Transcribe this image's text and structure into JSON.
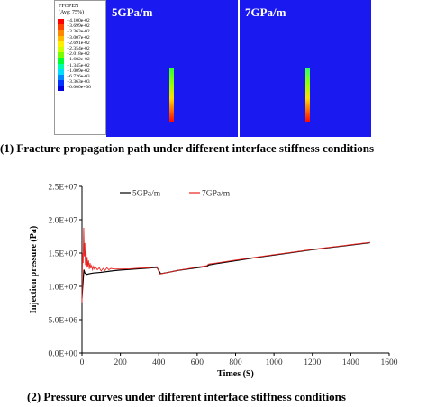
{
  "contour_legend": {
    "title_line1": "FFOPEN",
    "title_line2": "(Avg: 75%)",
    "entries": [
      {
        "label": "+4.100e-02",
        "color": "#ff0000"
      },
      {
        "label": "+3.699e-02",
        "color": "#ff4400"
      },
      {
        "label": "+3.363e-02",
        "color": "#ff8800"
      },
      {
        "label": "+3.007e-02",
        "color": "#ffbb00"
      },
      {
        "label": "+2.691e-02",
        "color": "#ffee00"
      },
      {
        "label": "+2.354e-02",
        "color": "#ccff00"
      },
      {
        "label": "+2.018e-02",
        "color": "#77ff00"
      },
      {
        "label": "+1.682e-02",
        "color": "#00ff33"
      },
      {
        "label": "+1.345e-02",
        "color": "#00ffaa"
      },
      {
        "label": "+1.009e-02",
        "color": "#00ddff"
      },
      {
        "label": "+6.726e-03",
        "color": "#0088ff"
      },
      {
        "label": "+3.363e-03",
        "color": "#0033ff"
      },
      {
        "label": "+0.000e+00",
        "color": "#0000dd"
      }
    ]
  },
  "contour_panels": [
    {
      "label": "5GPa/m"
    },
    {
      "label": "7GPa/m"
    }
  ],
  "caption_top": "(1)    Fracture propagation path under  different interface stiffness conditions",
  "caption_bottom": "(2)    Pressure curves under different interface stiffness conditions",
  "chart_data": {
    "type": "line",
    "xlabel": "Times (S)",
    "ylabel": "Injection pressure (Pa)",
    "xlim": [
      0,
      1600
    ],
    "ylim": [
      0,
      25000000
    ],
    "xticks": [
      0,
      200,
      400,
      600,
      800,
      1000,
      1200,
      1400,
      1600
    ],
    "yticks": [
      0,
      5000000,
      10000000,
      15000000,
      20000000,
      25000000
    ],
    "xtick_labels": [
      "0",
      "200",
      "400",
      "600",
      "800",
      "1000",
      "1200",
      "1400",
      "1600"
    ],
    "ytick_labels": [
      "0.0E+00",
      "5.0E+06",
      "1.0E+07",
      "1.5E+07",
      "2.0E+07",
      "2.5E+07"
    ],
    "legend_position": "top-center",
    "series": [
      {
        "name": "5GPa/m",
        "color": "#000000",
        "points": [
          [
            0,
            8200000
          ],
          [
            5,
            10500000
          ],
          [
            10,
            12500000
          ],
          [
            15,
            12000000
          ],
          [
            25,
            11800000
          ],
          [
            40,
            11900000
          ],
          [
            60,
            12000000
          ],
          [
            100,
            12100000
          ],
          [
            150,
            12300000
          ],
          [
            200,
            12450000
          ],
          [
            250,
            12550000
          ],
          [
            300,
            12650000
          ],
          [
            350,
            12750000
          ],
          [
            390,
            12850000
          ],
          [
            410,
            11900000
          ],
          [
            450,
            12100000
          ],
          [
            500,
            12400000
          ],
          [
            550,
            12600000
          ],
          [
            600,
            12800000
          ],
          [
            650,
            13000000
          ],
          [
            660,
            13200000
          ],
          [
            700,
            13400000
          ],
          [
            800,
            13850000
          ],
          [
            900,
            14300000
          ],
          [
            1000,
            14700000
          ],
          [
            1100,
            15100000
          ],
          [
            1200,
            15500000
          ],
          [
            1300,
            15850000
          ],
          [
            1400,
            16200000
          ],
          [
            1500,
            16550000
          ]
        ]
      },
      {
        "name": "7GPa/m",
        "color": "#e8231f",
        "points": [
          [
            0,
            7600000
          ],
          [
            3,
            15000000
          ],
          [
            6,
            13500000
          ],
          [
            9,
            18800000
          ],
          [
            12,
            14500000
          ],
          [
            15,
            16500000
          ],
          [
            18,
            13200000
          ],
          [
            21,
            15600000
          ],
          [
            24,
            12800000
          ],
          [
            27,
            14400000
          ],
          [
            30,
            13000000
          ],
          [
            34,
            13900000
          ],
          [
            38,
            12600000
          ],
          [
            42,
            13500000
          ],
          [
            46,
            12700000
          ],
          [
            50,
            13100000
          ],
          [
            55,
            12500000
          ],
          [
            60,
            13000000
          ],
          [
            65,
            12600000
          ],
          [
            70,
            12900000
          ],
          [
            80,
            12500000
          ],
          [
            90,
            12800000
          ],
          [
            100,
            12300000
          ],
          [
            110,
            12700000
          ],
          [
            120,
            12400000
          ],
          [
            130,
            12800000
          ],
          [
            140,
            12500000
          ],
          [
            150,
            12700000
          ],
          [
            170,
            12600000
          ],
          [
            200,
            12600000
          ],
          [
            250,
            12650000
          ],
          [
            300,
            12750000
          ],
          [
            350,
            12800000
          ],
          [
            390,
            12950000
          ],
          [
            405,
            11850000
          ],
          [
            450,
            12100000
          ],
          [
            500,
            12400000
          ],
          [
            550,
            12650000
          ],
          [
            600,
            12900000
          ],
          [
            650,
            13100000
          ],
          [
            660,
            13350000
          ],
          [
            700,
            13500000
          ],
          [
            800,
            13950000
          ],
          [
            900,
            14350000
          ],
          [
            1000,
            14750000
          ],
          [
            1100,
            15150000
          ],
          [
            1200,
            15550000
          ],
          [
            1300,
            15900000
          ],
          [
            1400,
            16250000
          ],
          [
            1500,
            16600000
          ]
        ]
      }
    ]
  }
}
